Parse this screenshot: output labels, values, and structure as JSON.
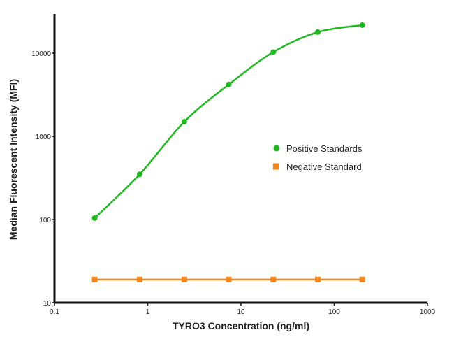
{
  "chart_data": {
    "type": "line",
    "xlabel": "TYRO3 Concentration (ng/ml)",
    "ylabel": "Median Fluorescent Intensity (MFI)",
    "xscale": "log",
    "yscale": "log",
    "xlim": [
      0.1,
      1000
    ],
    "ylim": [
      10,
      30000
    ],
    "xticks": [
      "0.1",
      "1",
      "10",
      "100",
      "1000"
    ],
    "yticks": [
      "10",
      "100",
      "1000",
      "10000"
    ],
    "grid": false,
    "legend_position": "right-center",
    "series": [
      {
        "name": "Positive Standards",
        "color": "#22b822",
        "marker": "circle",
        "fit": "smooth-curve",
        "x": [
          0.27,
          0.82,
          2.47,
          7.4,
          22.2,
          66.7,
          200
        ],
        "y": [
          104,
          350,
          1500,
          4200,
          10300,
          17900,
          21700
        ]
      },
      {
        "name": "Negative Standard",
        "color": "#f0861c",
        "marker": "square",
        "fit": "line",
        "x": [
          0.27,
          0.82,
          2.47,
          7.4,
          22.2,
          66.7,
          200
        ],
        "y": [
          19,
          19,
          19,
          19,
          19,
          19,
          19
        ]
      }
    ]
  }
}
